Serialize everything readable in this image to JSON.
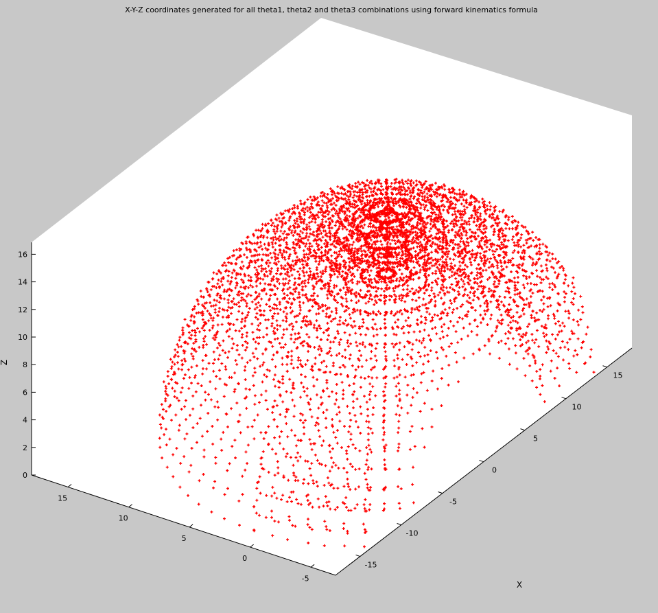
{
  "chart_data": {
    "type": "scatter3d",
    "title": "X-Y-Z coordinates generated for all theta1, theta2 and theta3 combinations using forward kinematics formula",
    "xlabel": "X",
    "ylabel": "",
    "zlabel": "Z",
    "x_ticks": [
      "-15",
      "-10",
      "-5",
      "0",
      "5",
      "10",
      "15"
    ],
    "y_ticks": [
      "-5",
      "0",
      "5",
      "10",
      "15"
    ],
    "z_ticks": [
      "0",
      "2",
      "4",
      "6",
      "8",
      "10",
      "12",
      "14",
      "16"
    ],
    "xlim": [
      -18,
      18
    ],
    "ylim": [
      -7,
      18
    ],
    "zlim": [
      0,
      17
    ],
    "marker": "+",
    "marker_color": "#ff0000",
    "background": "#ffffff",
    "figure_color": "#c8c8c8",
    "grid": false,
    "point_description": "Forward kinematics workspace of a 3-joint arm: points on a near-spherical dome of radius about 16 over x, y and z, with a dense inner fold near x = 0"
  }
}
